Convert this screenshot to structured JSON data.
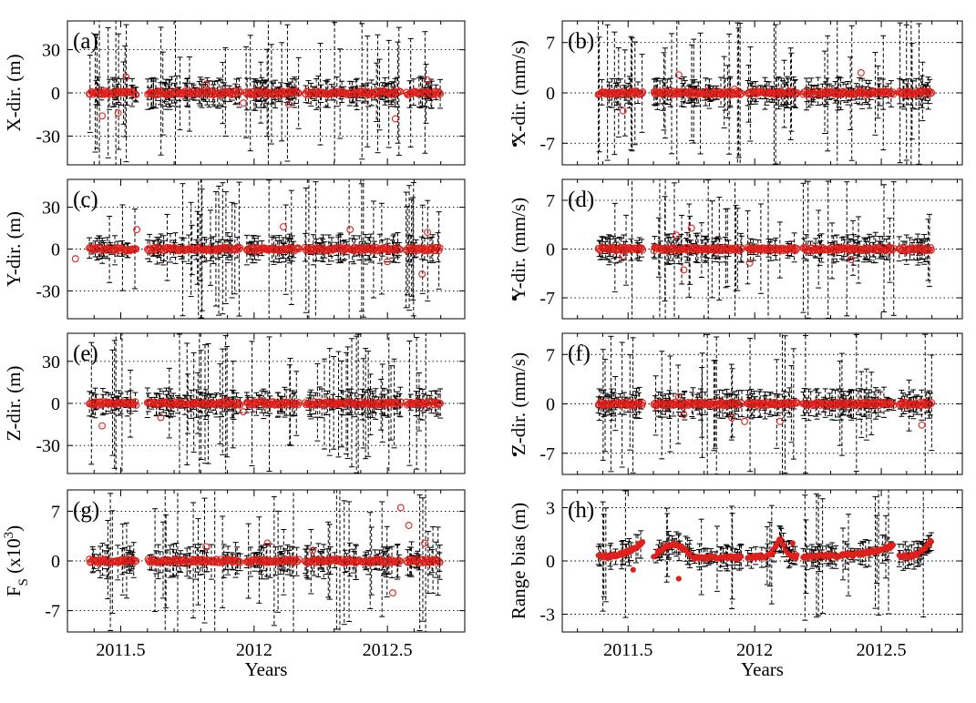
{
  "figure": {
    "xlabel": "Years"
  },
  "chart_data": [
    {
      "type": "scatter",
      "panel": "(a)",
      "ylabel": "X-dir. (m)",
      "ylabel_dot": false,
      "ylim": [
        -50,
        50
      ],
      "yticks": [
        "30",
        "0",
        "-30"
      ],
      "ytick_values": [
        30,
        0,
        -30
      ],
      "grid_y": [
        30,
        0,
        -30
      ],
      "xlim": [
        2011.3,
        2012.79
      ],
      "xticks": [
        "2011.5",
        "2012",
        "2012.5"
      ],
      "xtick_values": [
        2011.5,
        2012.0,
        2012.5
      ],
      "marker": "open",
      "err_scale": 22,
      "outliers": [
        [
          2011.52,
          11
        ],
        [
          2011.43,
          -16
        ],
        [
          2011.49,
          -14
        ],
        [
          2011.96,
          -7
        ],
        [
          2012.13,
          -8
        ],
        [
          2012.53,
          -18
        ],
        [
          2012.65,
          9
        ],
        [
          2011.82,
          6
        ]
      ],
      "show_xlabels": false,
      "show_xtitle": false
    },
    {
      "type": "scatter",
      "panel": "(b)",
      "ylabel": "X-dir. (mm/s)",
      "ylabel_dot": true,
      "ylim": [
        -10,
        10
      ],
      "yticks": [
        "7",
        "0",
        "-7"
      ],
      "ytick_values": [
        7,
        0,
        -7
      ],
      "grid_y": [
        7,
        0,
        -7
      ],
      "xlim": [
        2011.24,
        2012.82
      ],
      "xticks": [
        "2011.5",
        "2012",
        "2012.5"
      ],
      "xtick_values": [
        2011.5,
        2012.0,
        2012.5
      ],
      "marker": "open",
      "err_scale": 4.5,
      "outliers": [
        [
          2011.7,
          2.5
        ],
        [
          2011.48,
          -2.5
        ],
        [
          2012.42,
          2.8
        ],
        [
          2011.92,
          0.5
        ]
      ],
      "show_xlabels": false,
      "show_xtitle": false
    },
    {
      "type": "scatter",
      "panel": "(c)",
      "ylabel": "Y-dir. (m)",
      "ylabel_dot": false,
      "ylim": [
        -50,
        50
      ],
      "yticks": [
        "30",
        "0",
        "-30"
      ],
      "ytick_values": [
        30,
        0,
        -30
      ],
      "grid_y": [
        30,
        0,
        -30
      ],
      "xlim": [
        2011.3,
        2012.79
      ],
      "xticks": [
        "2011.5",
        "2012",
        "2012.5"
      ],
      "xtick_values": [
        2011.5,
        2012.0,
        2012.5
      ],
      "marker": "open",
      "err_scale": 22,
      "outliers": [
        [
          2011.56,
          14
        ],
        [
          2012.11,
          16
        ],
        [
          2012.36,
          14
        ],
        [
          2012.65,
          12
        ],
        [
          2012.63,
          -18
        ],
        [
          2011.33,
          -7
        ],
        [
          2012.5,
          -9
        ]
      ],
      "show_xlabels": false,
      "show_xtitle": false
    },
    {
      "type": "scatter",
      "panel": "(d)",
      "ylabel": "Y-dir. (mm/s)",
      "ylabel_dot": true,
      "ylim": [
        -10,
        10
      ],
      "yticks": [
        "7",
        "0",
        "-7"
      ],
      "ytick_values": [
        7,
        0,
        -7
      ],
      "grid_y": [
        7,
        0,
        -7
      ],
      "xlim": [
        2011.24,
        2012.82
      ],
      "xticks": [
        "2011.5",
        "2012",
        "2012.5"
      ],
      "xtick_values": [
        2011.5,
        2012.0,
        2012.5
      ],
      "marker": "open",
      "err_scale": 4.5,
      "outliers": [
        [
          2011.75,
          3
        ],
        [
          2011.69,
          2
        ],
        [
          2011.72,
          -3
        ],
        [
          2011.98,
          -2
        ],
        [
          2012.38,
          -1.5
        ],
        [
          2011.48,
          -1
        ]
      ],
      "show_xlabels": false,
      "show_xtitle": false
    },
    {
      "type": "scatter",
      "panel": "(e)",
      "ylabel": "Z-dir. (m)",
      "ylabel_dot": false,
      "ylim": [
        -50,
        50
      ],
      "yticks": [
        "30",
        "0",
        "-30"
      ],
      "ytick_values": [
        30,
        0,
        -30
      ],
      "grid_y": [
        30,
        0,
        -30
      ],
      "xlim": [
        2011.3,
        2012.79
      ],
      "xticks": [
        "2011.5",
        "2012",
        "2012.5"
      ],
      "xtick_values": [
        2011.5,
        2012.0,
        2012.5
      ],
      "marker": "open",
      "err_scale": 22,
      "outliers": [
        [
          2011.43,
          -16
        ],
        [
          2011.65,
          -10
        ],
        [
          2011.96,
          -6
        ],
        [
          2011.9,
          2
        ],
        [
          2012.55,
          1
        ]
      ],
      "show_xlabels": false,
      "show_xtitle": false
    },
    {
      "type": "scatter",
      "panel": "(f)",
      "ylabel": "Z-dir. (mm/s)",
      "ylabel_dot": true,
      "ylim": [
        -10,
        10
      ],
      "yticks": [
        "7",
        "0",
        "-7"
      ],
      "ytick_values": [
        7,
        0,
        -7
      ],
      "grid_y": [
        7,
        0,
        -7
      ],
      "xlim": [
        2011.24,
        2012.82
      ],
      "xticks": [
        "2011.5",
        "2012",
        "2012.5"
      ],
      "xtick_values": [
        2011.5,
        2012.0,
        2012.5
      ],
      "marker": "open",
      "err_scale": 4.5,
      "outliers": [
        [
          2011.7,
          1
        ],
        [
          2011.91,
          -2
        ],
        [
          2011.96,
          -2.5
        ],
        [
          2012.1,
          -2.5
        ],
        [
          2012.66,
          -3
        ],
        [
          2011.72,
          -1.5
        ]
      ],
      "show_xlabels": false,
      "show_xtitle": false
    },
    {
      "type": "scatter",
      "panel": "(g)",
      "ylabel": "F",
      "ylabel_sub": "S",
      "ylabel_rest": " (x10",
      "ylabel_sup": "3",
      "ylabel_end": ")",
      "ylabel_dot": false,
      "ylim": [
        -10,
        10
      ],
      "yticks": [
        "7",
        "0",
        "-7"
      ],
      "ytick_values": [
        7,
        0,
        -7
      ],
      "grid_y": [
        7,
        0,
        -7
      ],
      "xlim": [
        2011.3,
        2012.79
      ],
      "xticks": [
        "2011.5",
        "2012",
        "2012.5"
      ],
      "xtick_values": [
        2011.5,
        2012.0,
        2012.5
      ],
      "marker": "open",
      "err_scale": 5,
      "outliers": [
        [
          2012.55,
          7.5
        ],
        [
          2012.58,
          5
        ],
        [
          2012.52,
          -4.5
        ],
        [
          2012.64,
          2.5
        ],
        [
          2011.82,
          2
        ],
        [
          2012.05,
          2.5
        ],
        [
          2012.22,
          1.5
        ]
      ],
      "show_xlabels": true,
      "show_xtitle": true
    },
    {
      "type": "scatter",
      "panel": "(h)",
      "ylabel": "Range bias (m)",
      "ylabel_dot": false,
      "ylim": [
        -4,
        4
      ],
      "yticks": [
        "3",
        "0",
        "-3"
      ],
      "ytick_values": [
        3,
        0,
        -3
      ],
      "grid_y": [
        3,
        0,
        -3
      ],
      "xlim": [
        2011.24,
        2012.82
      ],
      "xticks": [
        "2011.5",
        "2012",
        "2012.5"
      ],
      "xtick_values": [
        2011.5,
        2012.0,
        2012.5
      ],
      "marker": "filled",
      "err_scale": 1.6,
      "outliers": [
        [
          2011.7,
          -1
        ],
        [
          2011.52,
          -0.5
        ],
        [
          2012.15,
          1
        ]
      ],
      "show_xlabels": true,
      "show_xtitle": true
    }
  ]
}
